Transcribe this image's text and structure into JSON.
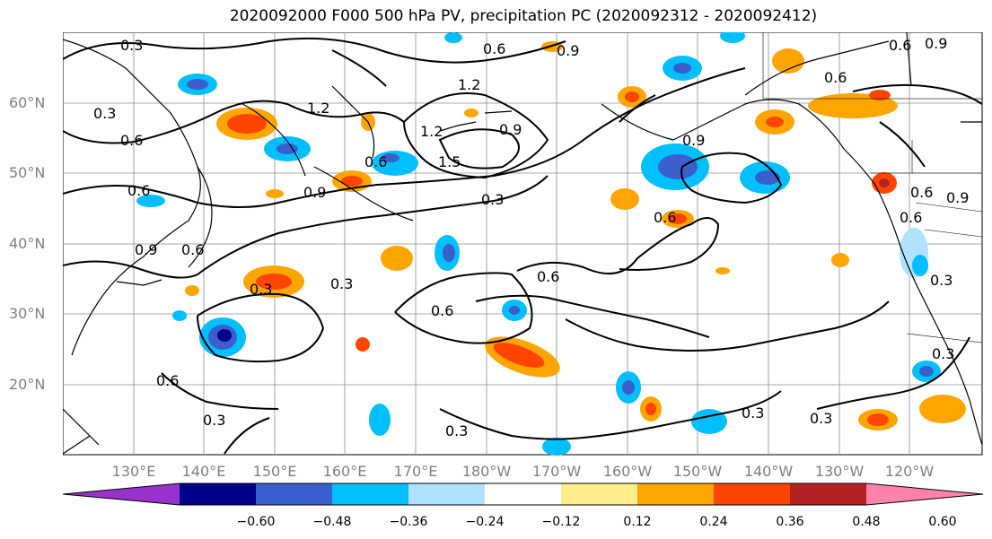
{
  "title": "2020092000 F000 500 hPa PV, precipitation PC (2020092312 - 2020092412)",
  "lat_labels": [
    "60°N",
    "50°N",
    "40°N",
    "30°N",
    "20°N"
  ],
  "lon_labels": [
    "130°E",
    "140°E",
    "150°E",
    "160°E",
    "170°E",
    "180°W",
    "170°W",
    "160°W",
    "150°W",
    "140°W",
    "130°W",
    "120°W"
  ],
  "contour_labels": [
    "0.3",
    "0.6",
    "0.9",
    "1.2",
    "1.5"
  ],
  "colorbar": {
    "ticks": [
      "−0.60",
      "−0.48",
      "−0.36",
      "−0.24",
      "−0.12",
      "0.12",
      "0.24",
      "0.36",
      "0.48",
      "0.60"
    ],
    "colors": [
      "#9932cc",
      "#00008b",
      "#3a5fcd",
      "#00bfff",
      "#b0e2ff",
      "#ffffff",
      "#ffec8b",
      "#ffa500",
      "#ff4500",
      "#b22222",
      "#ff82ab"
    ]
  }
}
